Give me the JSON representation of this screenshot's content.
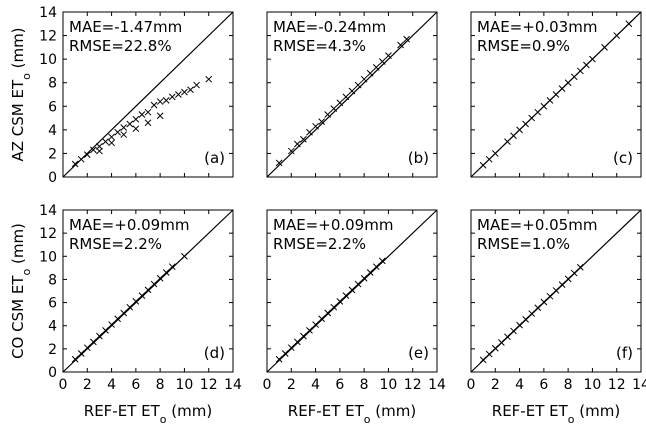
{
  "chart_data": [
    {
      "type": "scatter",
      "panel": "(a)",
      "annotations": [
        "MAE=-1.47mm",
        "RMSE=22.8%"
      ],
      "ylabel": [
        "AZ CSM ET",
        "o",
        " (mm)"
      ],
      "color": "#000000",
      "marker": "x",
      "x": [
        1,
        1.5,
        2,
        2.5,
        3,
        3,
        3.5,
        4,
        4,
        4.5,
        5,
        5,
        5.5,
        6,
        6,
        6.5,
        7,
        7,
        7.5,
        8,
        8,
        8.5,
        9,
        9.5,
        10,
        10.5,
        11,
        12
      ],
      "y": [
        1.1,
        1.5,
        1.9,
        2.3,
        2.6,
        2.2,
        3,
        3.4,
        2.9,
        3.8,
        4.2,
        3.6,
        4.5,
        4.9,
        4.1,
        5.3,
        5.5,
        4.6,
        6.1,
        6.4,
        5.2,
        6.5,
        6.8,
        7,
        7.2,
        7.4,
        7.8,
        8.3
      ],
      "xlim": [
        0,
        14
      ],
      "ylim": [
        0,
        14
      ],
      "xticks": [
        0,
        2,
        4,
        6,
        8,
        10,
        12,
        14
      ],
      "yticks": [
        0,
        2,
        4,
        6,
        8,
        10,
        12,
        14
      ],
      "xtick_labels": false,
      "ytick_labels": true
    },
    {
      "type": "scatter",
      "panel": "(b)",
      "annotations": [
        "MAE=-0.24mm",
        "RMSE=4.3%"
      ],
      "color": "#000000",
      "marker": "x",
      "x": [
        1,
        2,
        2.5,
        3,
        3.5,
        4,
        4.5,
        5,
        5.5,
        6,
        6.5,
        7,
        7.5,
        8,
        8.5,
        9,
        9.5,
        10,
        11,
        11.5
      ],
      "y": [
        1.2,
        2.2,
        2.8,
        3.2,
        3.8,
        4.3,
        4.7,
        5.3,
        5.8,
        6.3,
        6.8,
        7.3,
        7.8,
        8.3,
        8.8,
        9.3,
        9.8,
        10.3,
        11.2,
        11.7
      ],
      "xlim": [
        0,
        14
      ],
      "ylim": [
        0,
        14
      ],
      "xticks": [
        0,
        2,
        4,
        6,
        8,
        10,
        12,
        14
      ],
      "yticks": [
        0,
        2,
        4,
        6,
        8,
        10,
        12,
        14
      ],
      "xtick_labels": false,
      "ytick_labels": false
    },
    {
      "type": "scatter",
      "panel": "(c)",
      "annotations": [
        "MAE=+0.03mm",
        "RMSE=0.9%"
      ],
      "color": "#000000",
      "marker": "x",
      "x": [
        1,
        1.5,
        2,
        3,
        3.5,
        4,
        4.5,
        5,
        5.5,
        6,
        6.5,
        7,
        7.5,
        8,
        8.5,
        9,
        9.5,
        10,
        11,
        12,
        13
      ],
      "y": [
        1,
        1.5,
        2,
        3,
        3.5,
        4,
        4.5,
        5,
        5.5,
        6,
        6.5,
        7,
        7.5,
        8,
        8.5,
        9,
        9.5,
        10,
        11,
        12,
        13
      ],
      "xlim": [
        0,
        14
      ],
      "ylim": [
        0,
        14
      ],
      "xticks": [
        0,
        2,
        4,
        6,
        8,
        10,
        12,
        14
      ],
      "yticks": [
        0,
        2,
        4,
        6,
        8,
        10,
        12,
        14
      ],
      "xtick_labels": false,
      "ytick_labels": false
    },
    {
      "type": "scatter",
      "panel": "(d)",
      "annotations": [
        "MAE=+0.09mm",
        "RMSE=2.2%"
      ],
      "ylabel": [
        "CO CSM ET",
        "o",
        " (mm)"
      ],
      "color": "#000000",
      "marker": "x",
      "x": [
        1,
        1.5,
        2,
        2.5,
        3,
        3.5,
        4,
        4.5,
        5,
        5.5,
        6,
        6.5,
        7,
        7.5,
        8,
        8.5,
        9,
        10
      ],
      "y": [
        1.1,
        1.6,
        2.1,
        2.6,
        3.1,
        3.6,
        4.1,
        4.6,
        5.1,
        5.6,
        6.1,
        6.6,
        7.1,
        7.6,
        8.1,
        8.6,
        9.1,
        10
      ],
      "xlim": [
        0,
        14
      ],
      "ylim": [
        0,
        14
      ],
      "xticks": [
        0,
        2,
        4,
        6,
        8,
        10,
        12,
        14
      ],
      "yticks": [
        0,
        2,
        4,
        6,
        8,
        10,
        12,
        14
      ],
      "xtick_labels": true,
      "ytick_labels": true,
      "xlabel": [
        "REF-ET ET",
        "o",
        "  (mm)"
      ]
    },
    {
      "type": "scatter",
      "panel": "(e)",
      "annotations": [
        "MAE=+0.09mm",
        "RMSE=2.2%"
      ],
      "color": "#000000",
      "marker": "x",
      "x": [
        1,
        1.5,
        2,
        2.5,
        3,
        3.5,
        4,
        4.5,
        5,
        5.5,
        6,
        6.5,
        7,
        7.5,
        8,
        8.5,
        9,
        9.5
      ],
      "y": [
        1.1,
        1.6,
        2.1,
        2.6,
        3.1,
        3.6,
        4.1,
        4.6,
        5.1,
        5.6,
        6.1,
        6.6,
        7.1,
        7.6,
        8.1,
        8.6,
        9.1,
        9.6
      ],
      "xlim": [
        0,
        14
      ],
      "ylim": [
        0,
        14
      ],
      "xticks": [
        0,
        2,
        4,
        6,
        8,
        10,
        12,
        14
      ],
      "yticks": [
        0,
        2,
        4,
        6,
        8,
        10,
        12,
        14
      ],
      "xtick_labels": true,
      "ytick_labels": false,
      "xlabel": [
        "REF-ET ET",
        "o",
        "  (mm)"
      ]
    },
    {
      "type": "scatter",
      "panel": "(f)",
      "annotations": [
        "MAE=+0.05mm",
        "RMSE=1.0%"
      ],
      "color": "#000000",
      "marker": "x",
      "x": [
        1,
        1.5,
        2,
        2.5,
        3,
        3.5,
        4,
        4.5,
        5,
        5.5,
        6,
        6.5,
        7,
        7.5,
        8,
        8.5,
        9
      ],
      "y": [
        1.05,
        1.55,
        2.05,
        2.55,
        3.05,
        3.55,
        4.05,
        4.55,
        5.05,
        5.55,
        6.05,
        6.55,
        7.05,
        7.55,
        8.05,
        8.55,
        9.05
      ],
      "xlim": [
        0,
        14
      ],
      "ylim": [
        0,
        14
      ],
      "xticks": [
        0,
        2,
        4,
        6,
        8,
        10,
        12,
        14
      ],
      "yticks": [
        0,
        2,
        4,
        6,
        8,
        10,
        12,
        14
      ],
      "xtick_labels": true,
      "ytick_labels": false,
      "xlabel": [
        "REF-ET ET",
        "o",
        "  (mm)"
      ]
    }
  ]
}
